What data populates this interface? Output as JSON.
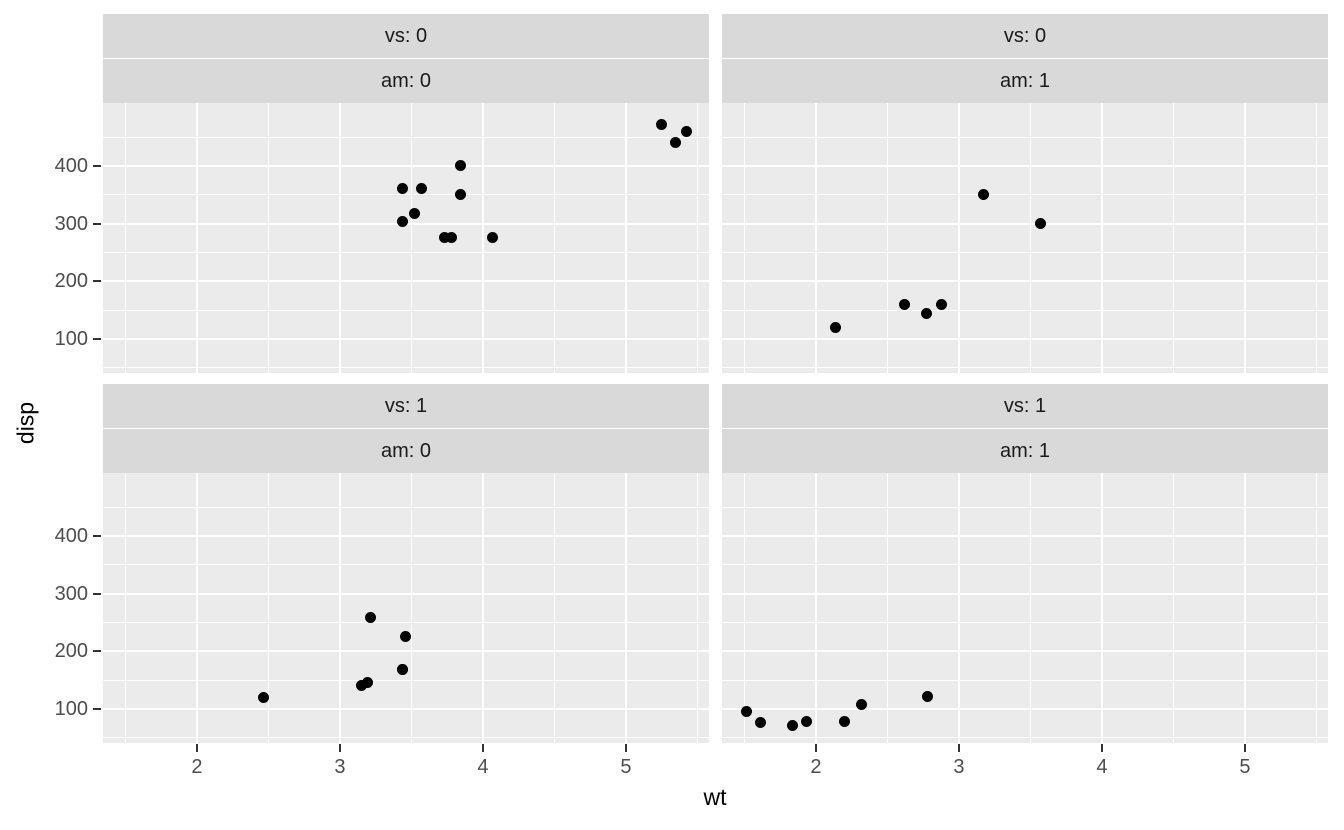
{
  "figure": {
    "background": "#FFFFFF",
    "panel_bg": "#EBEBEB",
    "strip_bg": "#D9D9D9",
    "strip_divider": "#E8E8E8",
    "grid_color": "#FFFFFF",
    "point_color": "#000000",
    "axis_text_color": "#4D4D4D",
    "tick_color": "#333333",
    "strip_text_color": "#1A1A1A",
    "title_color": "#000000"
  },
  "chart_data": {
    "type": "scatter",
    "title": "",
    "xlabel": "wt",
    "ylabel": "disp",
    "xlim": [
      1.343,
      5.581
    ],
    "ylim": [
      41,
      509
    ],
    "x_major_ticks": [
      2,
      3,
      4,
      5
    ],
    "x_minor_ticks": [
      1.5,
      2.5,
      3.5,
      4.5,
      5.5
    ],
    "y_major_ticks": [
      100,
      200,
      300,
      400
    ],
    "y_minor_ticks": [
      50,
      150,
      250,
      350,
      450
    ],
    "grid": true,
    "legend": "none",
    "facet_row_var": "vs",
    "facet_col_var": "am",
    "facets": [
      {
        "row": 0,
        "col": 0,
        "strip_labels": [
          "vs: 0",
          "am: 0"
        ],
        "points": [
          [
            3.44,
            360
          ],
          [
            3.57,
            360
          ],
          [
            4.07,
            275.8
          ],
          [
            3.73,
            275.8
          ],
          [
            3.78,
            275.8
          ],
          [
            5.25,
            472
          ],
          [
            5.424,
            460
          ],
          [
            5.345,
            440
          ],
          [
            3.52,
            318
          ],
          [
            3.435,
            304
          ],
          [
            3.84,
            350
          ],
          [
            3.845,
            400
          ]
        ]
      },
      {
        "row": 0,
        "col": 1,
        "strip_labels": [
          "vs: 0",
          "am: 1"
        ],
        "points": [
          [
            2.62,
            160
          ],
          [
            2.875,
            160
          ],
          [
            2.14,
            120.3
          ],
          [
            3.17,
            351
          ],
          [
            2.77,
            145
          ],
          [
            3.57,
            301
          ]
        ]
      },
      {
        "row": 1,
        "col": 0,
        "strip_labels": [
          "vs: 1",
          "am: 0"
        ],
        "points": [
          [
            3.215,
            258
          ],
          [
            3.46,
            225
          ],
          [
            3.19,
            146.7
          ],
          [
            3.15,
            140.8
          ],
          [
            3.44,
            167.6
          ],
          [
            3.44,
            167.6
          ],
          [
            2.465,
            120.1
          ]
        ]
      },
      {
        "row": 1,
        "col": 1,
        "strip_labels": [
          "vs: 1",
          "am: 1"
        ],
        "points": [
          [
            2.32,
            108
          ],
          [
            2.2,
            78.7
          ],
          [
            1.615,
            75.7
          ],
          [
            1.835,
            71.1
          ],
          [
            1.935,
            79
          ],
          [
            1.513,
            95.1
          ],
          [
            2.78,
            121
          ]
        ]
      }
    ]
  }
}
